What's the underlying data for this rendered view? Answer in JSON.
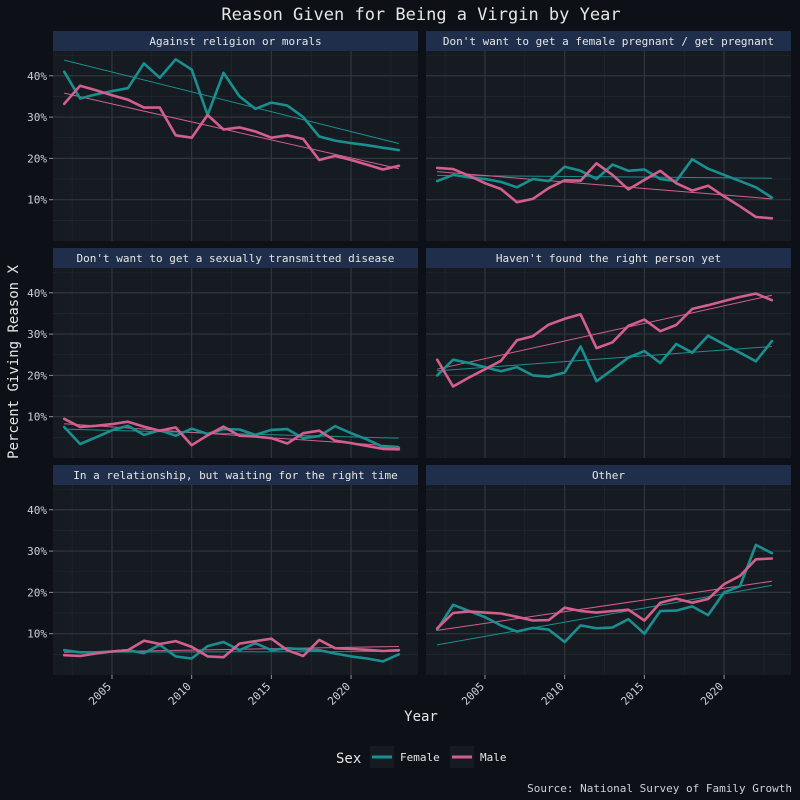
{
  "chart_data": {
    "type": "line",
    "title": "Reason Given for Being a Virgin by Year",
    "xlabel": "Year",
    "ylabel": "Percent Giving Reason X",
    "caption": "Source: National Survey of Family Growth",
    "xlim": [
      2001.3,
      2024.2
    ],
    "ylim": [
      0,
      46
    ],
    "x_ticks": [
      2005,
      2010,
      2015,
      2020
    ],
    "y_ticks": [
      10,
      20,
      30,
      40
    ],
    "y_tick_labels": [
      "10%",
      "20%",
      "30%",
      "40%"
    ],
    "legend": {
      "title": "Sex",
      "position": "bottom"
    },
    "colors": {
      "Female": "#1a8f8f",
      "Male": "#d35f8d"
    },
    "years": [
      2002,
      2003,
      2004,
      2005,
      2006,
      2007,
      2008,
      2009,
      2010,
      2011,
      2012,
      2013,
      2014,
      2015,
      2016,
      2017,
      2018,
      2019,
      2020,
      2021,
      2022,
      2023
    ],
    "facets": [
      {
        "label": "Against religion or morals",
        "series": [
          {
            "name": "Female",
            "values": [
              41,
              34.5,
              35.5,
              36.3,
              37,
              43,
              39.5,
              44,
              41.5,
              30.5,
              40.7,
              35,
              32,
              33.5,
              32.8,
              30,
              25.3,
              24.3,
              23.7,
              23.2,
              22.6,
              22
            ],
            "trend": [
              43.8,
              23.6
            ]
          },
          {
            "name": "Male",
            "values": [
              33.2,
              37.6,
              36.5,
              35.3,
              34.2,
              32.3,
              32.3,
              25.6,
              25,
              30.5,
              27,
              27.5,
              26.5,
              25,
              25.6,
              24.7,
              19.6,
              20.6,
              19.6,
              18.5,
              17.3,
              18.2
            ],
            "trend": [
              35.8,
              17.5
            ]
          }
        ]
      },
      {
        "label": "Don't want to get a female pregnant / get pregnant",
        "series": [
          {
            "name": "Female",
            "values": [
              14.5,
              16,
              15.4,
              15,
              14.3,
              13,
              15,
              14.5,
              18,
              17,
              15,
              18.5,
              17,
              17.3,
              15,
              14.5,
              19.8,
              17.5,
              16,
              14.5,
              13,
              10.5
            ],
            "trend": [
              15.9,
              15.2
            ]
          },
          {
            "name": "Male",
            "values": [
              17.7,
              17.4,
              15.8,
              14,
              12.6,
              9.4,
              10.2,
              12.8,
              14.7,
              14.6,
              18.8,
              16,
              12.5,
              14.8,
              17,
              14,
              12.2,
              13.4,
              10.8,
              8.4,
              5.8,
              5.5
            ],
            "trend": [
              16.8,
              10.2
            ]
          }
        ]
      },
      {
        "label": "Don't want to get a sexually transmitted disease",
        "series": [
          {
            "name": "Female",
            "values": [
              7.5,
              3.4,
              5,
              6.7,
              7.8,
              5.6,
              6.7,
              5.4,
              7.1,
              5.8,
              7,
              6.9,
              5.6,
              6.8,
              7,
              4.8,
              5.3,
              7.7,
              6,
              4.5,
              2.7,
              2.5
            ],
            "trend": [
              7.0,
              4.8
            ]
          },
          {
            "name": "Male",
            "values": [
              9.5,
              7.5,
              7.8,
              8.2,
              8.8,
              7.6,
              6.6,
              7.4,
              3.1,
              5.5,
              7.6,
              5.4,
              5.2,
              4.8,
              3.5,
              6,
              6.6,
              4.2,
              3.6,
              2.9,
              2.2,
              2.1
            ],
            "trend": [
              8.3,
              2.8
            ]
          }
        ]
      },
      {
        "label": "Haven't found the right person yet",
        "series": [
          {
            "name": "Female",
            "values": [
              20,
              23.8,
              23,
              22,
              21,
              22,
              20,
              19.7,
              20.7,
              27,
              18.6,
              21.4,
              24.3,
              25.9,
              23,
              27.6,
              25.5,
              29.6,
              27.5,
              25.5,
              23.4,
              28.3
            ],
            "trend": [
              21.1,
              27.0
            ]
          },
          {
            "name": "Male",
            "values": [
              23.8,
              17.3,
              19.5,
              21.5,
              23.5,
              28.5,
              29.5,
              32.3,
              33.7,
              34.8,
              26.6,
              28,
              32,
              33.5,
              30.7,
              32.2,
              36.1,
              37,
              38,
              39,
              39.8,
              38.2
            ],
            "trend": [
              21.5,
              39.4
            ]
          }
        ]
      },
      {
        "label": "In a relationship, but waiting for the right time",
        "series": [
          {
            "name": "Female",
            "values": [
              6,
              5.5,
              5.5,
              5.7,
              6,
              5.3,
              7.3,
              4.5,
              4,
              7,
              8,
              6,
              7.7,
              6,
              6.5,
              6.2,
              6,
              5.2,
              4.5,
              4,
              3.3,
              5
            ],
            "trend": [
              5.5,
              5.7
            ]
          },
          {
            "name": "Male",
            "values": [
              4.8,
              4.6,
              5.2,
              5.7,
              6,
              8.3,
              7.5,
              8.2,
              6.8,
              4.5,
              4.3,
              7.6,
              8.2,
              8.8,
              6,
              4.6,
              8.5,
              6.5,
              6.3,
              6.1,
              5.8,
              6
            ],
            "trend": [
              5.5,
              6.9
            ]
          }
        ]
      },
      {
        "label": "Other",
        "series": [
          {
            "name": "Female",
            "values": [
              11,
              17,
              15.5,
              14,
              12,
              10.5,
              11.4,
              11,
              8,
              12,
              11.3,
              11.5,
              13.5,
              10,
              15.5,
              15.6,
              16.6,
              14.5,
              20,
              21.5,
              31.5,
              29.5
            ],
            "trend": [
              7.3,
              21.7
            ]
          },
          {
            "name": "Male",
            "values": [
              11.3,
              15,
              15.4,
              15.1,
              14.9,
              14.1,
              13.2,
              13.3,
              16.3,
              15.5,
              15.1,
              15.5,
              15.8,
              13.2,
              17.5,
              18.5,
              17.5,
              18.4,
              22,
              24,
              28,
              28.2
            ],
            "trend": [
              10.8,
              22.7
            ]
          }
        ]
      }
    ]
  }
}
